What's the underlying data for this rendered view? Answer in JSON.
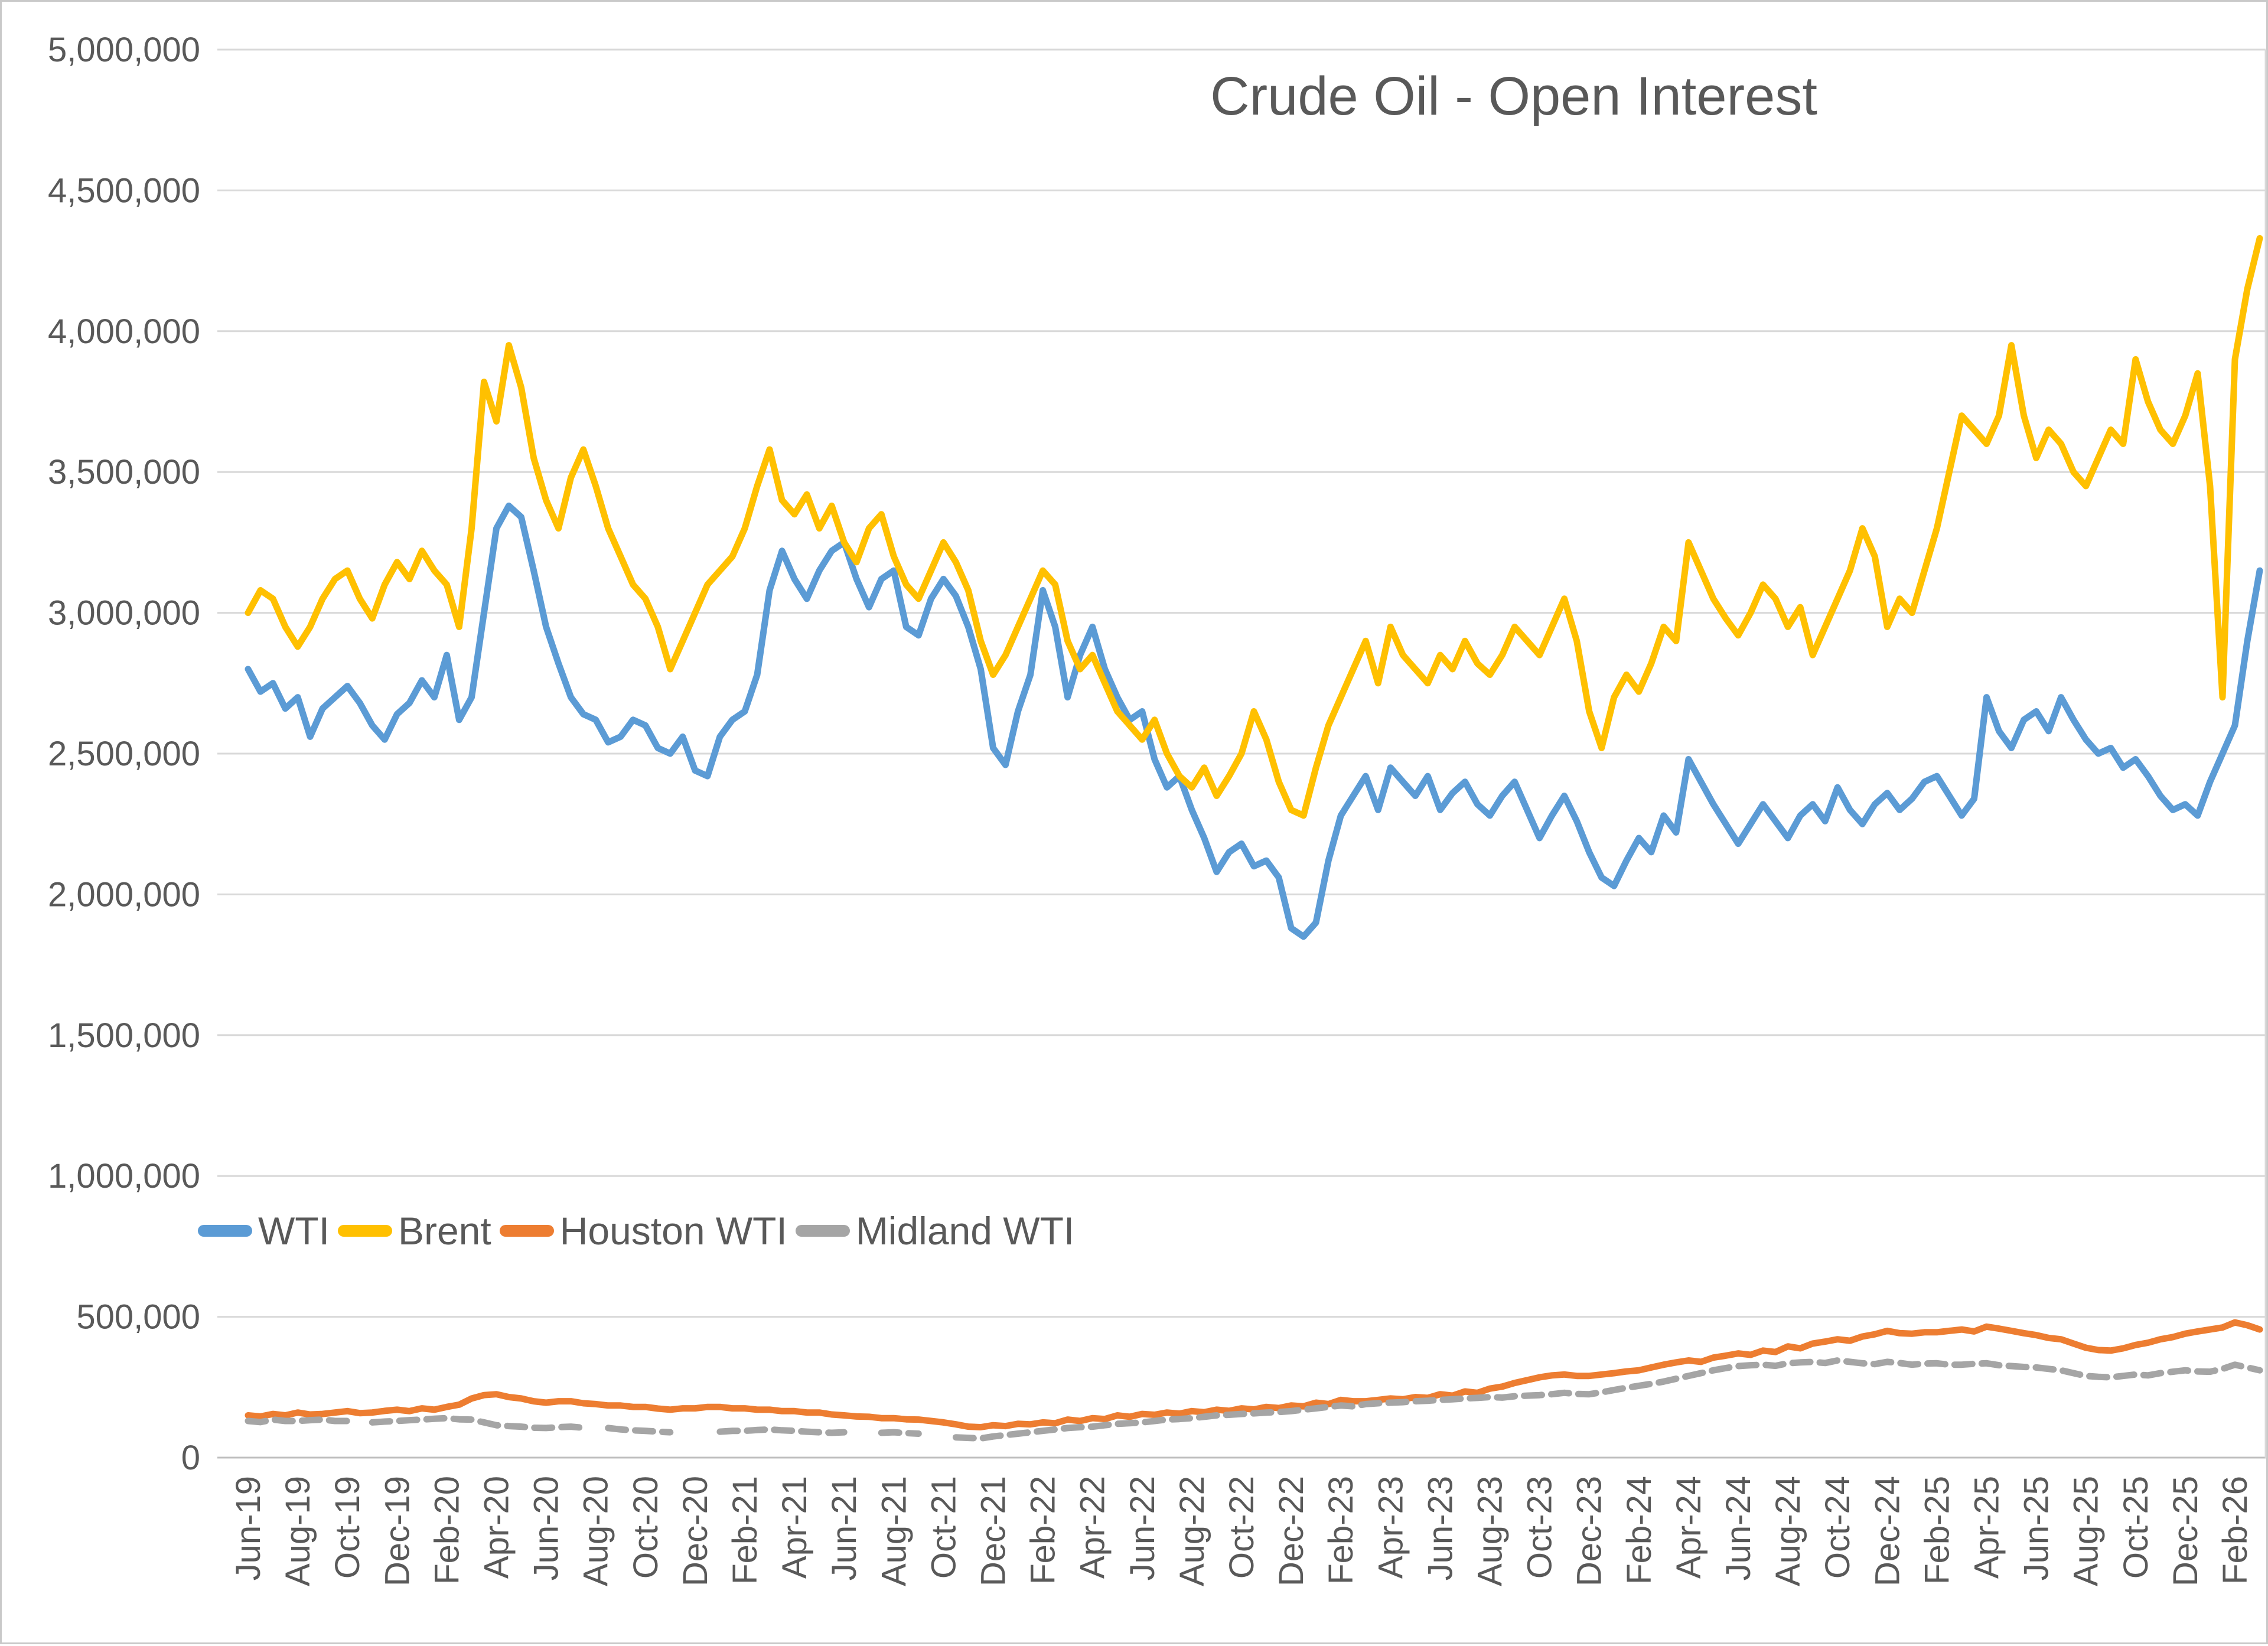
{
  "chart_data": {
    "type": "line",
    "title": "Crude Oil - Open Interest",
    "xlabel": "",
    "ylabel": "",
    "ylim": [
      0,
      5000000
    ],
    "grid": "horizontal",
    "legend_position": "inside-bottom-left",
    "y_ticks": [
      {
        "value": 0,
        "label": "0"
      },
      {
        "value": 500000,
        "label": "500,000"
      },
      {
        "value": 1000000,
        "label": "1,000,000"
      },
      {
        "value": 1500000,
        "label": "1,500,000"
      },
      {
        "value": 2000000,
        "label": "2,000,000"
      },
      {
        "value": 2500000,
        "label": "2,500,000"
      },
      {
        "value": 3000000,
        "label": "3,000,000"
      },
      {
        "value": 3500000,
        "label": "3,500,000"
      },
      {
        "value": 4000000,
        "label": "4,000,000"
      },
      {
        "value": 4500000,
        "label": "4,500,000"
      },
      {
        "value": 5000000,
        "label": "5,000,000"
      }
    ],
    "x_tick_labels": [
      "Jun-19",
      "Aug-19",
      "Oct-19",
      "Dec-19",
      "Feb-20",
      "Apr-20",
      "Jun-20",
      "Aug-20",
      "Oct-20",
      "Dec-20",
      "Feb-21",
      "Apr-21",
      "Jun-21",
      "Aug-21",
      "Oct-21",
      "Dec-21",
      "Feb-22",
      "Apr-22",
      "Jun-22",
      "Aug-22",
      "Oct-22",
      "Dec-22",
      "Feb-23",
      "Apr-23",
      "Jun-23",
      "Aug-23",
      "Oct-23",
      "Dec-23",
      "Feb-24",
      "Apr-24",
      "Jun-24",
      "Aug-24",
      "Oct-24",
      "Dec-24",
      "Feb-25",
      "Apr-25",
      "Jun-25",
      "Aug-25",
      "Oct-25",
      "Dec-25",
      "Feb-26"
    ],
    "x_tick_every_months": 2,
    "points_per_month": 2,
    "value_scale": 1000,
    "colors": {
      "wti": "#5B9BD5",
      "brent": "#FFC000",
      "houston_wti": "#ED7D31",
      "midland_wti": "#A5A5A5",
      "text": "#595959",
      "gridline": "#D9D9D9"
    },
    "series": [
      {
        "name": "WTI",
        "color": "#5B9BD5",
        "values": [
          2800,
          2720,
          2750,
          2660,
          2700,
          2560,
          2660,
          2700,
          2740,
          2680,
          2600,
          2550,
          2640,
          2680,
          2760,
          2700,
          2850,
          2620,
          2700,
          3000,
          3300,
          3380,
          3340,
          3150,
          2950,
          2820,
          2700,
          2640,
          2620,
          2540,
          2560,
          2620,
          2600,
          2520,
          2500,
          2560,
          2440,
          2420,
          2560,
          2620,
          2650,
          2780,
          3080,
          3220,
          3120,
          3050,
          3150,
          3220,
          3250,
          3120,
          3020,
          3120,
          3150,
          2950,
          2920,
          3050,
          3120,
          3060,
          2950,
          2800,
          2520,
          2460,
          2650,
          2780,
          3080,
          2950,
          2700,
          2850,
          2950,
          2800,
          2700,
          2620,
          2650,
          2480,
          2380,
          2420,
          2300,
          2200,
          2080,
          2150,
          2180,
          2100,
          2120,
          2060,
          1880,
          1850,
          1900,
          2120,
          2280,
          2350,
          2420,
          2300,
          2450,
          2400,
          2350,
          2420,
          2300,
          2360,
          2400,
          2320,
          2280,
          2350,
          2400,
          2300,
          2200,
          2280,
          2350,
          2260,
          2150,
          2060,
          2030,
          2120,
          2200,
          2150,
          2280,
          2220,
          2480,
          2400,
          2320,
          2250,
          2180,
          2250,
          2320,
          2260,
          2200,
          2280,
          2320,
          2260,
          2380,
          2300,
          2250,
          2320,
          2360,
          2300,
          2340,
          2400,
          2420,
          2350,
          2280,
          2340,
          2700,
          2580,
          2520,
          2620,
          2650,
          2580,
          2700,
          2620,
          2550,
          2500,
          2520,
          2450,
          2480,
          2420,
          2350,
          2300,
          2320,
          2280,
          2400,
          2500,
          2600,
          2900,
          3150
        ]
      },
      {
        "name": "Brent",
        "color": "#FFC000",
        "values": [
          3000,
          3080,
          3050,
          2950,
          2880,
          2950,
          3050,
          3120,
          3150,
          3050,
          2980,
          3100,
          3180,
          3120,
          3220,
          3150,
          3100,
          2950,
          3300,
          3820,
          3680,
          3950,
          3800,
          3550,
          3400,
          3300,
          3480,
          3580,
          3450,
          3300,
          3200,
          3100,
          3050,
          2950,
          2800,
          2900,
          3000,
          3100,
          3150,
          3200,
          3300,
          3450,
          3580,
          3400,
          3350,
          3420,
          3300,
          3380,
          3250,
          3180,
          3300,
          3350,
          3200,
          3100,
          3050,
          3150,
          3250,
          3180,
          3080,
          2900,
          2780,
          2850,
          2950,
          3050,
          3150,
          3100,
          2900,
          2800,
          2850,
          2750,
          2650,
          2600,
          2550,
          2620,
          2500,
          2420,
          2380,
          2450,
          2350,
          2420,
          2500,
          2650,
          2550,
          2400,
          2300,
          2280,
          2450,
          2600,
          2700,
          2800,
          2900,
          2750,
          2950,
          2850,
          2800,
          2750,
          2850,
          2800,
          2900,
          2820,
          2780,
          2850,
          2950,
          2900,
          2850,
          2950,
          3050,
          2900,
          2650,
          2520,
          2700,
          2780,
          2720,
          2820,
          2950,
          2900,
          3250,
          3150,
          3050,
          2980,
          2920,
          3000,
          3100,
          3050,
          2950,
          3020,
          2850,
          2950,
          3050,
          3150,
          3300,
          3200,
          2950,
          3050,
          3000,
          3150,
          3300,
          3500,
          3700,
          3650,
          3600,
          3700,
          3950,
          3700,
          3550,
          3650,
          3600,
          3500,
          3450,
          3550,
          3650,
          3600,
          3900,
          3750,
          3650,
          3600,
          3700,
          3850,
          3450,
          2700,
          3900,
          4150,
          4330
        ]
      },
      {
        "name": "Houston WTI",
        "color": "#ED7D31",
        "values": [
          150,
          146,
          155,
          150,
          160,
          153,
          155,
          160,
          165,
          158,
          160,
          166,
          170,
          165,
          175,
          170,
          180,
          188,
          210,
          222,
          225,
          215,
          210,
          200,
          195,
          200,
          200,
          193,
          190,
          185,
          185,
          180,
          180,
          174,
          170,
          175,
          175,
          180,
          180,
          175,
          175,
          170,
          170,
          165,
          165,
          160,
          160,
          153,
          150,
          146,
          145,
          140,
          140,
          136,
          135,
          130,
          125,
          118,
          110,
          108,
          115,
          112,
          120,
          118,
          125,
          122,
          135,
          130,
          140,
          137,
          150,
          145,
          155,
          152,
          160,
          156,
          165,
          161,
          170,
          166,
          175,
          171,
          180,
          176,
          185,
          182,
          195,
          190,
          205,
          200,
          200,
          205,
          210,
          207,
          215,
          212,
          225,
          220,
          235,
          230,
          245,
          252,
          265,
          275,
          285,
          292,
          295,
          290,
          290,
          295,
          300,
          306,
          310,
          320,
          330,
          338,
          345,
          340,
          355,
          362,
          370,
          365,
          380,
          375,
          395,
          388,
          405,
          412,
          420,
          415,
          430,
          438,
          450,
          442,
          440,
          445,
          445,
          450,
          455,
          448,
          465,
          458,
          450,
          442,
          435,
          425,
          420,
          405,
          390,
          382,
          380,
          388,
          400,
          408,
          420,
          428,
          440,
          448,
          455,
          462,
          480,
          470,
          455
        ]
      },
      {
        "name": "Midland WTI",
        "color": "#A5A5A5",
        "dash_until_index": 61,
        "values": [
          130,
          126,
          135,
          130,
          130,
          133,
          135,
          130,
          130,
          null,
          125,
          128,
          130,
          133,
          135,
          138,
          140,
          136,
          135,
          125,
          115,
          112,
          110,
          106,
          105,
          108,
          110,
          106,
          null,
          105,
          100,
          97,
          95,
          92,
          90,
          null,
          null,
          null,
          92,
          95,
          95,
          98,
          100,
          97,
          95,
          92,
          90,
          88,
          90,
          null,
          null,
          88,
          90,
          87,
          85,
          null,
          null,
          72,
          70,
          68,
          75,
          80,
          85,
          90,
          95,
          100,
          105,
          108,
          110,
          115,
          120,
          122,
          125,
          130,
          135,
          137,
          140,
          145,
          150,
          152,
          155,
          157,
          160,
          162,
          165,
          170,
          175,
          180,
          185,
          182,
          190,
          193,
          195,
          197,
          200,
          202,
          205,
          207,
          210,
          212,
          215,
          213,
          218,
          220,
          222,
          225,
          230,
          226,
          225,
          232,
          240,
          248,
          255,
          262,
          270,
          280,
          290,
          300,
          310,
          318,
          325,
          328,
          330,
          326,
          335,
          338,
          340,
          336,
          345,
          340,
          335,
          332,
          340,
          336,
          330,
          334,
          335,
          330,
          330,
          333,
          335,
          328,
          325,
          322,
          320,
          315,
          310,
          300,
          290,
          287,
          285,
          290,
          295,
          292,
          300,
          305,
          310,
          306,
          305,
          315,
          330,
          320,
          310
        ]
      }
    ]
  }
}
